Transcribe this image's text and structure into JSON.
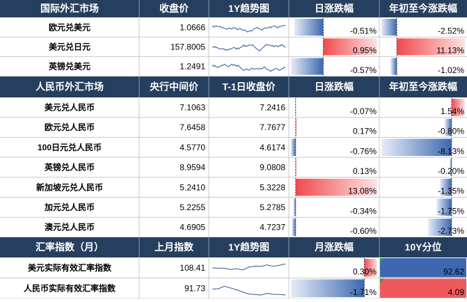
{
  "sections": [
    {
      "header": [
        "国际外汇市场",
        "收盘价",
        "1Y趋势图",
        "日涨跌幅",
        "年初至今涨跌幅"
      ],
      "rows": [
        {
          "name": "欧元兑美元",
          "close": "1.0666",
          "change": "-0.51%",
          "ytd": "-2.52%"
        },
        {
          "name": "美元兑日元",
          "close": "157.8005",
          "change": "0.95%",
          "ytd": "11.13%"
        },
        {
          "name": "英镑兑美元",
          "close": "1.2491",
          "change": "-0.57%",
          "ytd": "-1.02%"
        }
      ]
    },
    {
      "header": [
        "人民币外汇市场",
        "央行中间价",
        "T-1日收盘价",
        "日涨跌幅",
        "年初至今涨跌幅"
      ],
      "rows": [
        {
          "name": "美元兑人民币",
          "mid": "7.1063",
          "close": "7.2416",
          "change": "-0.07%",
          "ytd": "1.54%"
        },
        {
          "name": "欧元兑人民币",
          "mid": "7.6458",
          "close": "7.7677",
          "change": "0.17%",
          "ytd": "-0.80%"
        },
        {
          "name": "100日元兑人民币",
          "mid": "4.5770",
          "close": "4.6174",
          "change": "-0.76%",
          "ytd": "-8.13%"
        },
        {
          "name": "英镑兑人民币",
          "mid": "8.9594",
          "close": "9.0808",
          "change": "0.13%",
          "ytd": "-0.20%"
        },
        {
          "name": "新加坡元兑人民币",
          "mid": "5.2410",
          "close": "5.3228",
          "change": "13.08%",
          "ytd": "-1.35%"
        },
        {
          "name": "加元兑人民币",
          "mid": "5.2255",
          "close": "5.2785",
          "change": "-0.34%",
          "ytd": "-1.75%"
        },
        {
          "name": "澳元兑人民币",
          "mid": "4.6905",
          "close": "4.7237",
          "change": "-0.60%",
          "ytd": "-2.73%"
        }
      ]
    },
    {
      "header": [
        "汇率指数（月）",
        "上月指数",
        "1Y趋势图",
        "月涨跌幅",
        "10Y分位"
      ],
      "rows": [
        {
          "name": "美元实际有效汇率指数",
          "last": "108.41",
          "change": "0.30%",
          "pct": "92.62",
          "fill": "#3d68b0"
        },
        {
          "name": "人民币实际有效汇率指数",
          "last": "91.73",
          "change": "-1.71%",
          "pct": "4.09",
          "fill": "#f0595c"
        }
      ]
    }
  ]
}
